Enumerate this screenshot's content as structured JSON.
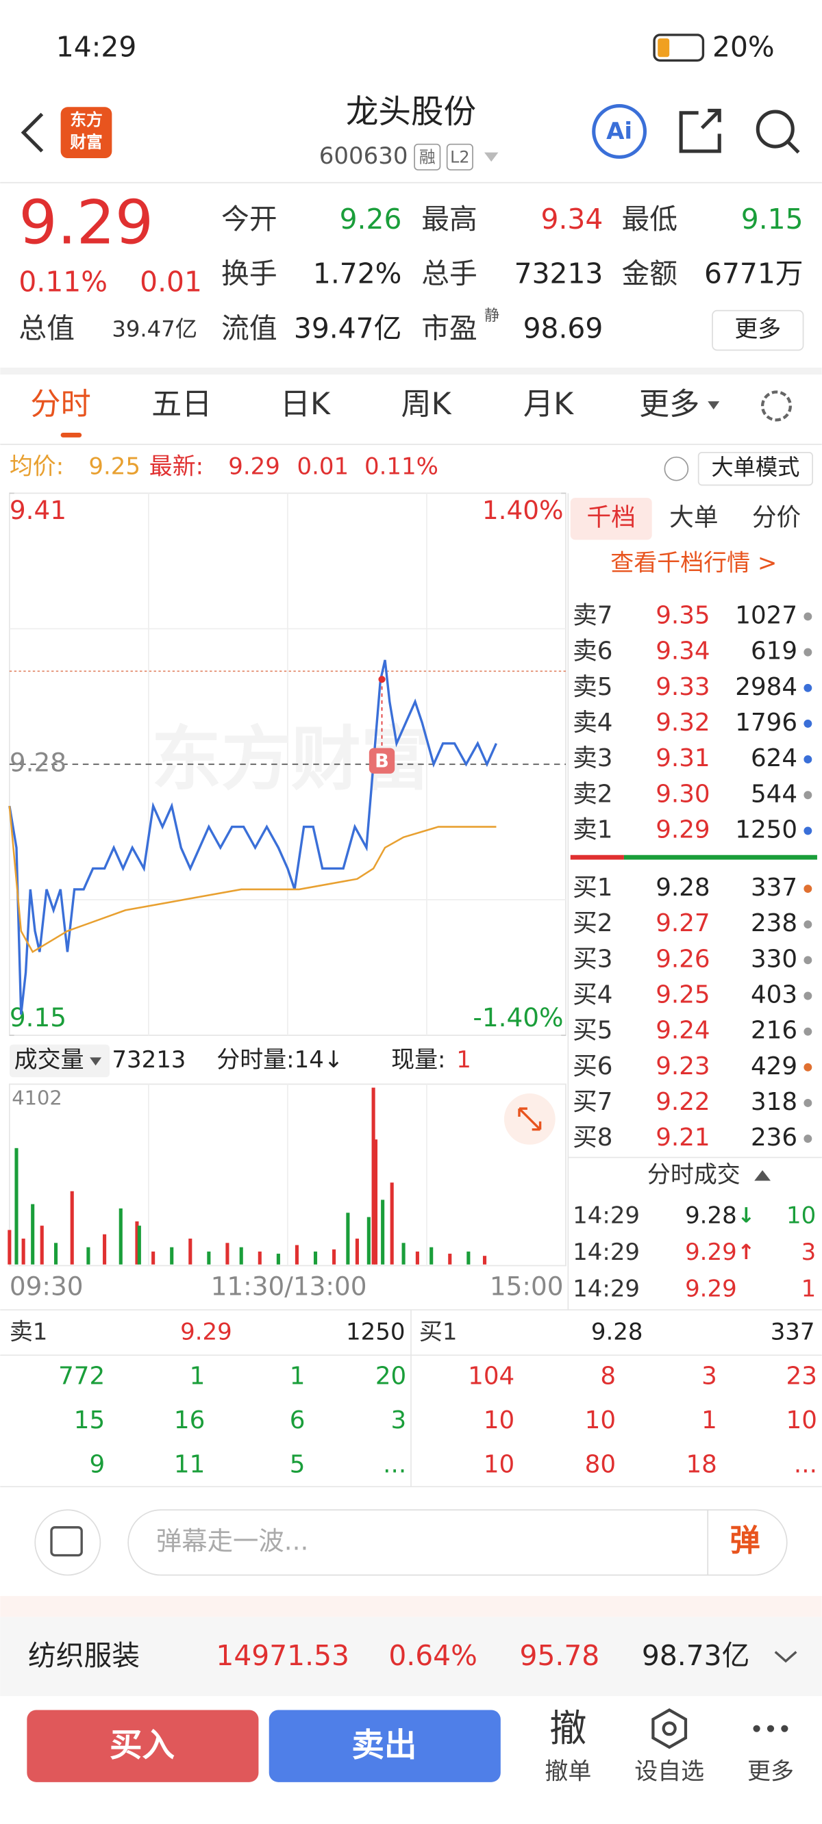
{
  "status": {
    "time": "14:29",
    "battery": "20%"
  },
  "header": {
    "logo": [
      "东方",
      "财富"
    ],
    "title": "龙头股份",
    "code": "600630",
    "badges": [
      "融",
      "L2"
    ]
  },
  "quote": {
    "price": "9.29",
    "change_pct": "0.11%",
    "change": "0.01",
    "fields": [
      {
        "label": "今开",
        "value": "9.26",
        "color": "#1a9e3a"
      },
      {
        "label": "最高",
        "value": "9.34",
        "color": "#e03030"
      },
      {
        "label": "最低",
        "value": "9.15",
        "color": "#1a9e3a"
      },
      {
        "label": "换手",
        "value": "1.72%",
        "color": "#222"
      },
      {
        "label": "总手",
        "value": "73213",
        "color": "#222"
      },
      {
        "label": "金额",
        "value": "6771万",
        "color": "#222"
      },
      {
        "label": "流值",
        "value": "39.47亿",
        "color": "#222"
      },
      {
        "label": "市盈",
        "sup": "静",
        "value": "98.69",
        "color": "#222"
      }
    ],
    "total_value": {
      "label": "总值",
      "value": "39.47亿"
    },
    "more": "更多"
  },
  "tabs": [
    "分时",
    "五日",
    "日K",
    "周K",
    "月K",
    "更多"
  ],
  "infobar": {
    "avg_label": "均价:",
    "avg": "9.25",
    "last_label": "最新:",
    "last": "9.29",
    "change": "0.01",
    "pct": "0.11%",
    "mode": "大单模式"
  },
  "chart_data": {
    "type": "line",
    "watermark": "东方财富",
    "marker": "B",
    "xlim": [
      0,
      240
    ],
    "ylim": [
      9.15,
      9.41
    ],
    "yticks": [
      9.15,
      9.28,
      9.41
    ],
    "y2lim": [
      -1.4,
      1.4
    ],
    "y2ticks": [
      {
        "value": -1.4,
        "label": "-1.40%"
      },
      {
        "value": 1.4,
        "label": "1.40%"
      }
    ],
    "x_labels": [
      "09:30",
      "11:30/13:00",
      "15:00"
    ],
    "series": [
      {
        "name": "最新",
        "color": "#3a6fd8",
        "x": [
          0,
          3,
          5,
          7,
          9,
          11,
          13,
          16,
          19,
          22,
          25,
          28,
          32,
          36,
          41,
          45,
          49,
          53,
          58,
          62,
          66,
          70,
          74,
          78,
          82,
          86,
          91,
          96,
          101,
          106,
          111,
          116,
          120,
          123,
          127,
          131,
          135,
          139,
          144,
          149,
          154,
          157,
          160,
          162,
          164,
          167,
          171,
          175,
          178,
          183,
          187,
          192,
          197,
          202,
          206,
          210
        ],
        "values": [
          9.26,
          9.24,
          9.16,
          9.18,
          9.22,
          9.2,
          9.19,
          9.22,
          9.21,
          9.22,
          9.19,
          9.22,
          9.22,
          9.23,
          9.23,
          9.24,
          9.23,
          9.24,
          9.23,
          9.26,
          9.25,
          9.26,
          9.24,
          9.23,
          9.24,
          9.25,
          9.24,
          9.25,
          9.25,
          9.24,
          9.25,
          9.24,
          9.23,
          9.22,
          9.25,
          9.25,
          9.23,
          9.23,
          9.23,
          9.25,
          9.24,
          9.28,
          9.32,
          9.33,
          9.31,
          9.29,
          9.3,
          9.31,
          9.3,
          9.28,
          9.29,
          9.29,
          9.28,
          9.29,
          9.28,
          9.29
        ]
      },
      {
        "name": "均价",
        "color": "#e8a030",
        "x": [
          0,
          5,
          10,
          25,
          50,
          75,
          100,
          125,
          150,
          157,
          162,
          170,
          185,
          200,
          210
        ],
        "values": [
          9.26,
          9.2,
          9.19,
          9.2,
          9.21,
          9.215,
          9.22,
          9.22,
          9.225,
          9.23,
          9.24,
          9.245,
          9.25,
          9.25,
          9.25
        ]
      }
    ],
    "volume": {
      "label": "成交量",
      "total": "73213",
      "per": "分时量:14↓",
      "now_label": "现量:",
      "now": "1",
      "ylim": [
        0,
        4102
      ],
      "yticks": [
        4102
      ],
      "x": [
        0,
        3,
        6,
        10,
        14,
        20,
        27,
        34,
        41,
        48,
        55,
        56,
        62,
        70,
        78,
        86,
        94,
        100,
        108,
        116,
        124,
        132,
        140,
        146,
        150,
        155,
        157,
        158,
        161,
        165,
        170,
        176,
        182,
        190,
        198,
        205
      ],
      "values": [
        800,
        2700,
        600,
        1400,
        900,
        500,
        1700,
        400,
        700,
        1300,
        1000,
        900,
        300,
        400,
        600,
        300,
        500,
        400,
        300,
        250,
        450,
        300,
        350,
        1200,
        600,
        1100,
        4102,
        2900,
        1500,
        1900,
        500,
        300,
        400,
        250,
        300,
        200
      ],
      "colors": [
        "#e03030",
        "#1a9e3a",
        "#e03030",
        "#1a9e3a",
        "#e03030",
        "#1a9e3a",
        "#e03030",
        "#1a9e3a",
        "#e03030",
        "#1a9e3a",
        "#e03030",
        "#1a9e3a",
        "#e03030",
        "#1a9e3a",
        "#e03030",
        "#1a9e3a",
        "#e03030",
        "#1a9e3a",
        "#e03030",
        "#1a9e3a",
        "#e03030",
        "#1a9e3a",
        "#e03030",
        "#1a9e3a",
        "#e03030",
        "#1a9e3a",
        "#e03030",
        "#e03030",
        "#1a9e3a",
        "#e03030",
        "#1a9e3a",
        "#e03030",
        "#1a9e3a",
        "#e03030",
        "#1a9e3a",
        "#e03030"
      ]
    }
  },
  "orderbook": {
    "tabs": [
      "千档",
      "大单",
      "分价"
    ],
    "link": "查看千档行情 >",
    "sells": [
      {
        "label": "卖7",
        "price": "9.35",
        "vol": "1027",
        "dot": "#999"
      },
      {
        "label": "卖6",
        "price": "9.34",
        "vol": "619",
        "dot": "#999"
      },
      {
        "label": "卖5",
        "price": "9.33",
        "vol": "2984",
        "dot": "#3a6fd8"
      },
      {
        "label": "卖4",
        "price": "9.32",
        "vol": "1796",
        "dot": "#3a6fd8"
      },
      {
        "label": "卖3",
        "price": "9.31",
        "vol": "624",
        "dot": "#3a6fd8"
      },
      {
        "label": "卖2",
        "price": "9.30",
        "vol": "544",
        "dot": "#999"
      },
      {
        "label": "卖1",
        "price": "9.29",
        "vol": "1250",
        "dot": "#3a6fd8"
      }
    ],
    "buys": [
      {
        "label": "买1",
        "price": "9.28",
        "vol": "337",
        "dot": "#e07030"
      },
      {
        "label": "买2",
        "price": "9.27",
        "vol": "238",
        "dot": "#999"
      },
      {
        "label": "买3",
        "price": "9.26",
        "vol": "330",
        "dot": "#999"
      },
      {
        "label": "买4",
        "price": "9.25",
        "vol": "403",
        "dot": "#999"
      },
      {
        "label": "买5",
        "price": "9.24",
        "vol": "216",
        "dot": "#999"
      },
      {
        "label": "买6",
        "price": "9.23",
        "vol": "429",
        "dot": "#e07030"
      },
      {
        "label": "买7",
        "price": "9.22",
        "vol": "318",
        "dot": "#999"
      },
      {
        "label": "买8",
        "price": "9.21",
        "vol": "236",
        "dot": "#999"
      }
    ],
    "trades_title": "分时成交",
    "trades": [
      {
        "time": "14:29",
        "price": "9.28",
        "arrow": "↓",
        "vol": "10"
      },
      {
        "time": "14:29",
        "price": "9.29",
        "arrow": "↑",
        "vol": "3"
      },
      {
        "time": "14:29",
        "price": "9.29",
        "arrow": "",
        "vol": "1"
      }
    ]
  },
  "queue": {
    "sell": {
      "label": "卖1",
      "price": "9.29",
      "vol": "1250",
      "rows": [
        [
          "772",
          "1",
          "1",
          "20"
        ],
        [
          "15",
          "16",
          "6",
          "3"
        ],
        [
          "9",
          "11",
          "5",
          "..."
        ]
      ]
    },
    "buy": {
      "label": "买1",
      "price": "9.28",
      "vol": "337",
      "rows": [
        [
          "104",
          "8",
          "3",
          "23"
        ],
        [
          "10",
          "10",
          "1",
          "10"
        ],
        [
          "10",
          "80",
          "18",
          "..."
        ]
      ]
    }
  },
  "danmaku": {
    "placeholder": "弹幕走一波...",
    "button": "弹"
  },
  "sector": {
    "name": "纺织服装",
    "value": "14971.53",
    "pct": "0.64%",
    "change": "95.78",
    "amount": "98.73亿"
  },
  "actions": {
    "buy": "买入",
    "sell": "卖出",
    "items": [
      {
        "icon": "撤",
        "label": "撤单"
      },
      {
        "label": "设自选"
      },
      {
        "label": "更多"
      }
    ]
  }
}
